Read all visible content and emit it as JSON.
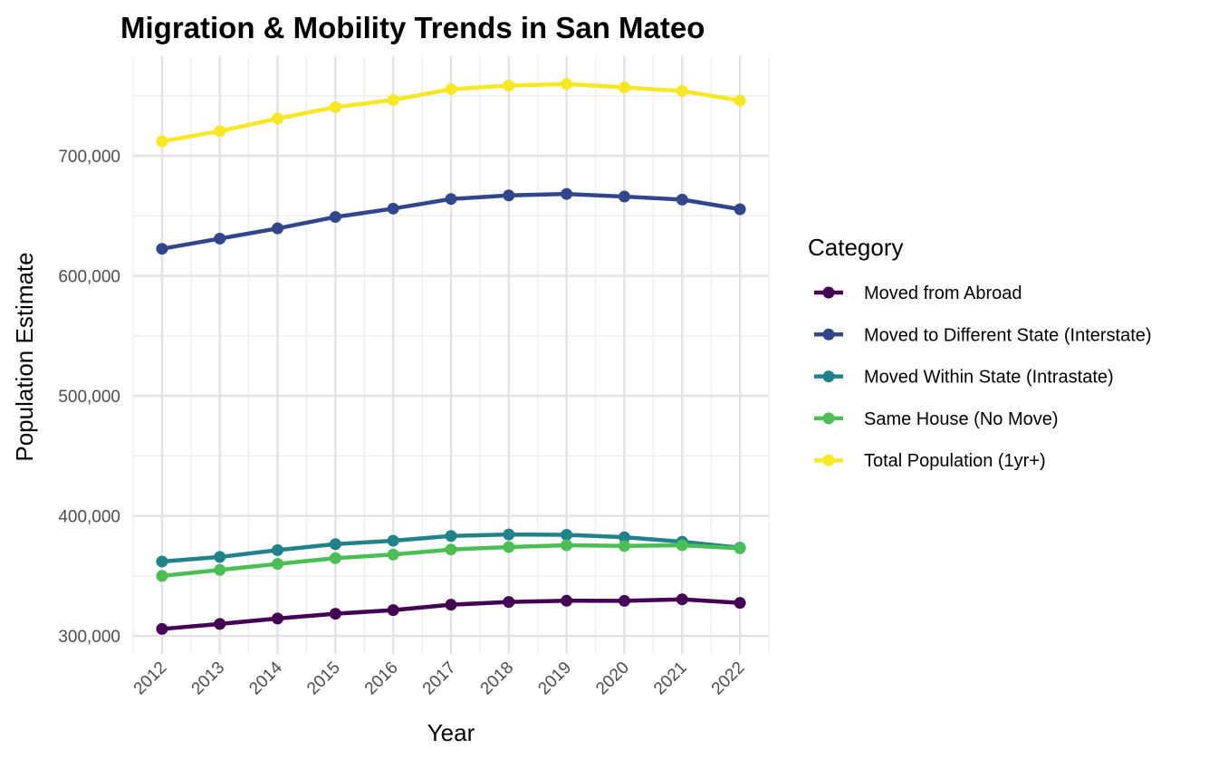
{
  "chart_data": {
    "type": "line",
    "title": "Migration & Mobility Trends in San Mateo",
    "xlabel": "Year",
    "ylabel": "Population Estimate",
    "x": [
      2012,
      2013,
      2014,
      2015,
      2016,
      2017,
      2018,
      2019,
      2020,
      2021,
      2022
    ],
    "y_ticks": [
      300000,
      400000,
      500000,
      600000,
      700000
    ],
    "y_tick_labels": [
      "300,000",
      "400,000",
      "500,000",
      "600,000",
      "700,000"
    ],
    "ylim": [
      285000,
      783000
    ],
    "grid": true,
    "legend": {
      "title": "Category",
      "position": "right"
    },
    "series": [
      {
        "name": "Moved from Abroad",
        "color": "#440154",
        "values": [
          305800,
          310000,
          314500,
          318500,
          321500,
          326000,
          328300,
          329300,
          329200,
          330500,
          327500
        ]
      },
      {
        "name": "Moved to Different State (Interstate)",
        "color": "#31468b",
        "values": [
          622500,
          631000,
          639500,
          649000,
          656000,
          664000,
          667000,
          668200,
          666000,
          663500,
          655500
        ]
      },
      {
        "name": "Moved Within State (Intrastate)",
        "color": "#20838c",
        "values": [
          362000,
          365800,
          371500,
          376500,
          379300,
          383300,
          384500,
          384200,
          382200,
          378500,
          373500
        ]
      },
      {
        "name": "Same House (No Move)",
        "color": "#4bbf55",
        "values": [
          350000,
          355000,
          360000,
          364800,
          367800,
          372000,
          374000,
          375500,
          375000,
          375500,
          373000
        ]
      },
      {
        "name": "Total Population (1yr+)",
        "color": "#f8e723",
        "values": [
          712000,
          720500,
          731000,
          740500,
          746500,
          755500,
          758500,
          759800,
          757000,
          754000,
          746000
        ]
      }
    ]
  }
}
